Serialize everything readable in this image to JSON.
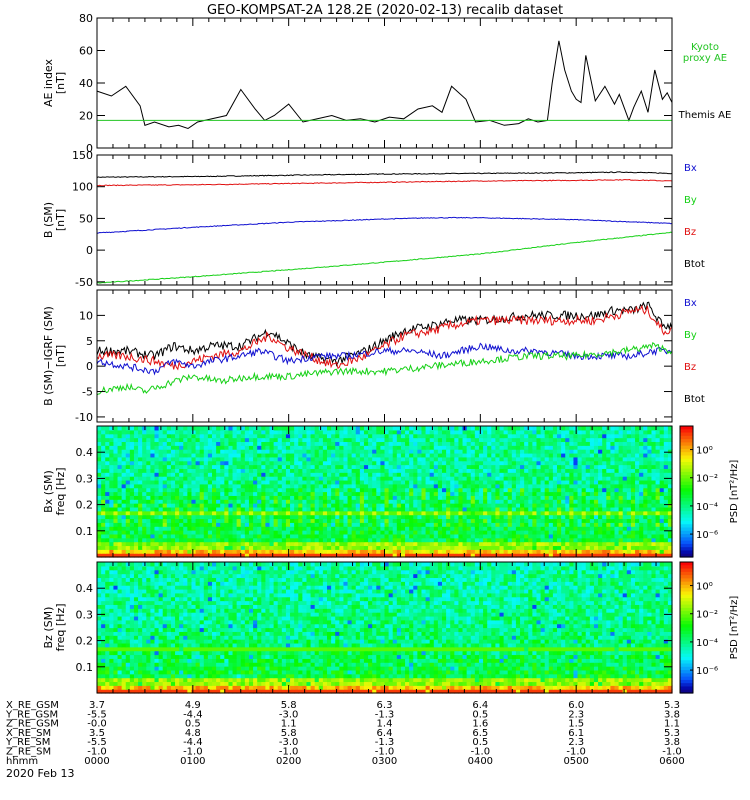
{
  "title": "GEO-KOMPSAT-2A 128.2E (2020-02-13) recalib dataset",
  "date_label": "2020 Feb 13",
  "colors": {
    "bx": "#1010d0",
    "by": "#16d016",
    "bz": "#e01010",
    "btot": "#000000",
    "kyoto": "#22c422"
  },
  "chart_data": [
    {
      "id": "ae",
      "type": "line",
      "ylabel_lines": [
        "AE index",
        "[nT]"
      ],
      "ylim": [
        0,
        80
      ],
      "yticks": [
        0,
        20,
        40,
        60,
        80
      ],
      "xlim": [
        0,
        6
      ],
      "legend": [
        {
          "label": "Kyoto",
          "color": "#22c422"
        },
        {
          "label": "proxy AE",
          "color": "#22c422"
        },
        {
          "label": "Themis AE",
          "color": "#000000"
        }
      ],
      "series": [
        {
          "name": "Themis AE",
          "color": "#000000",
          "x": [
            0,
            0.15,
            0.3,
            0.45,
            0.5,
            0.6,
            0.75,
            0.85,
            0.95,
            1.05,
            1.2,
            1.35,
            1.5,
            1.65,
            1.75,
            1.85,
            2.0,
            2.15,
            2.3,
            2.45,
            2.6,
            2.75,
            2.9,
            3.05,
            3.2,
            3.35,
            3.5,
            3.6,
            3.7,
            3.85,
            3.95,
            4.1,
            4.25,
            4.4,
            4.5,
            4.6,
            4.7,
            4.75,
            4.82,
            4.88,
            4.95,
            5.0,
            5.05,
            5.1,
            5.2,
            5.3,
            5.4,
            5.45,
            5.55,
            5.6,
            5.68,
            5.75,
            5.82,
            5.9,
            5.95,
            6.0
          ],
          "values": [
            35,
            32,
            38,
            26,
            14,
            16,
            13,
            14,
            12,
            16,
            18,
            20,
            36,
            24,
            17,
            20,
            27,
            16,
            18,
            20,
            17,
            18,
            16,
            19,
            18,
            24,
            26,
            22,
            38,
            30,
            16,
            17,
            14,
            15,
            18,
            16,
            17,
            40,
            66,
            48,
            35,
            30,
            28,
            57,
            29,
            38,
            27,
            33,
            17,
            25,
            35,
            22,
            48,
            30,
            34,
            28
          ]
        },
        {
          "name": "Kyoto proxy AE",
          "color": "#22c422",
          "x": [
            0,
            6
          ],
          "values": [
            17,
            17
          ]
        }
      ]
    },
    {
      "id": "b_sm",
      "type": "line",
      "ylabel_lines": [
        "B (SM)",
        "[nT]"
      ],
      "ylim": [
        -55,
        150
      ],
      "yticks": [
        -50,
        0,
        50,
        100,
        150
      ],
      "xlim": [
        0,
        6
      ],
      "legend": [
        {
          "label": "Bx",
          "color": "#1010d0"
        },
        {
          "label": "By",
          "color": "#16d016"
        },
        {
          "label": "Bz",
          "color": "#e01010"
        },
        {
          "label": "Btot",
          "color": "#000000"
        }
      ],
      "series": [
        {
          "name": "Btot",
          "color": "#000000",
          "x": [
            0,
            1,
            2,
            3,
            4,
            5,
            5.5,
            6
          ],
          "values": [
            115,
            116,
            118,
            120,
            121,
            122,
            123,
            121
          ]
        },
        {
          "name": "Bz",
          "color": "#e01010",
          "x": [
            0,
            1,
            2,
            3,
            4,
            5,
            5.5,
            6
          ],
          "values": [
            102,
            103,
            105,
            107,
            109,
            110,
            111,
            109
          ]
        },
        {
          "name": "Bx",
          "color": "#1010d0",
          "x": [
            0,
            1,
            2,
            3,
            3.5,
            4,
            5,
            5.5,
            6
          ],
          "values": [
            27,
            36,
            44,
            49,
            51,
            51,
            48,
            45,
            42
          ]
        },
        {
          "name": "By",
          "color": "#16d016",
          "x": [
            0,
            1,
            2,
            3,
            4,
            5,
            6
          ],
          "values": [
            -52,
            -42,
            -31,
            -19,
            -6,
            12,
            28
          ]
        }
      ]
    },
    {
      "id": "db_sm",
      "type": "line",
      "ylabel_lines": [
        "B (SM)−IGRF (SM)",
        "[nT]"
      ],
      "ylim": [
        -11,
        15
      ],
      "yticks": [
        -10,
        -5,
        0,
        5,
        10
      ],
      "xlim": [
        0,
        6
      ],
      "legend": [
        {
          "label": "Bx",
          "color": "#1010d0"
        },
        {
          "label": "By",
          "color": "#16d016"
        },
        {
          "label": "Bz",
          "color": "#e01010"
        },
        {
          "label": "Btot",
          "color": "#000000"
        }
      ],
      "series": [
        {
          "name": "Btot",
          "color": "#000000",
          "x": [
            0,
            0.3,
            0.6,
            0.8,
            1.0,
            1.2,
            1.5,
            1.8,
            1.95,
            2.2,
            2.5,
            2.8,
            3.0,
            3.2,
            3.5,
            3.7,
            4.0,
            4.5,
            4.8,
            5.0,
            5.2,
            5.4,
            5.6,
            5.75,
            5.9,
            6.0
          ],
          "values": [
            3,
            3,
            2,
            4,
            3,
            4,
            4,
            7,
            5,
            2,
            1,
            3,
            5,
            7,
            8,
            9,
            9,
            10,
            10,
            10,
            10,
            11,
            11,
            12,
            8,
            8
          ]
        },
        {
          "name": "Bz",
          "color": "#e01010",
          "x": [
            0,
            0.3,
            0.6,
            0.8,
            1.0,
            1.2,
            1.5,
            1.8,
            1.95,
            2.2,
            2.5,
            2.8,
            3.0,
            3.2,
            3.5,
            3.7,
            4.0,
            4.5,
            4.8,
            5.0,
            5.2,
            5.4,
            5.6,
            5.75,
            5.9,
            6.0
          ],
          "values": [
            2,
            2,
            1,
            0,
            1,
            2,
            3,
            6,
            4,
            2,
            0,
            2,
            4,
            6,
            7,
            8,
            9,
            9,
            9,
            9,
            9,
            10,
            11,
            11,
            7,
            7
          ]
        },
        {
          "name": "Bx",
          "color": "#1010d0",
          "x": [
            0,
            0.3,
            0.6,
            0.8,
            1.0,
            1.2,
            1.5,
            1.7,
            2.0,
            2.3,
            2.6,
            3.0,
            3.3,
            3.6,
            3.8,
            4.0,
            4.3,
            4.6,
            5.0,
            5.3,
            5.6,
            5.8,
            6.0
          ],
          "values": [
            1,
            0,
            -1,
            1,
            0,
            1,
            2,
            3,
            1,
            2,
            2,
            3,
            3,
            2,
            3,
            4,
            3,
            3,
            2,
            2,
            2,
            3,
            3
          ]
        },
        {
          "name": "By",
          "color": "#16d016",
          "x": [
            0,
            0.3,
            0.5,
            0.8,
            1.0,
            1.3,
            1.6,
            2.0,
            2.5,
            3.0,
            3.5,
            4.0,
            4.5,
            5.0,
            5.5,
            5.8,
            6.0
          ],
          "values": [
            -5,
            -4,
            -5,
            -3,
            -2,
            -3,
            -2,
            -2,
            -1,
            -1,
            0,
            1,
            2,
            2,
            3,
            4,
            3
          ]
        }
      ]
    },
    {
      "id": "spec_bx",
      "type": "heatmap",
      "ylabel_lines": [
        "Bx (SM)",
        "freq [Hz]"
      ],
      "ylim": [
        0,
        0.5
      ],
      "yticks": [
        0.1,
        0.2,
        0.3,
        0.4
      ],
      "xlim": [
        0,
        6
      ],
      "colorbar": {
        "label": "PSD [nT²/Hz]",
        "ticks": [
          "10⁰",
          "10⁻²",
          "10⁻⁴",
          "10⁻⁶"
        ]
      }
    },
    {
      "id": "spec_bz",
      "type": "heatmap",
      "ylabel_lines": [
        "Bz (SM)",
        "freq [Hz]"
      ],
      "ylim": [
        0,
        0.5
      ],
      "yticks": [
        0.1,
        0.2,
        0.3,
        0.4
      ],
      "xlim": [
        0,
        6
      ],
      "colorbar": {
        "label": "PSD [nT²/Hz]",
        "ticks": [
          "10⁰",
          "10⁻²",
          "10⁻⁴",
          "10⁻⁶"
        ]
      }
    }
  ],
  "ephemeris": {
    "labels": [
      "X_RE_GSM",
      "Y_RE_GSM",
      "Z_RE_GSM",
      "X_RE_SM",
      "Y_RE_SM",
      "Z_RE_SM",
      "hhmm"
    ],
    "columns": [
      [
        "3.7",
        "-5.5",
        "-0.0",
        "3.5",
        "-5.5",
        "-1.0",
        "0000"
      ],
      [
        "4.9",
        "-4.4",
        "0.5",
        "4.8",
        "-4.4",
        "-1.0",
        "0100"
      ],
      [
        "5.8",
        "-3.0",
        "1.1",
        "5.8",
        "-3.0",
        "-1.0",
        "0200"
      ],
      [
        "6.3",
        "-1.3",
        "1.4",
        "6.4",
        "-1.3",
        "-1.0",
        "0300"
      ],
      [
        "6.4",
        "0.5",
        "1.6",
        "6.5",
        "0.5",
        "-1.0",
        "0400"
      ],
      [
        "6.0",
        "2.3",
        "1.5",
        "6.1",
        "2.3",
        "-1.0",
        "0500"
      ],
      [
        "5.3",
        "3.8",
        "1.1",
        "5.3",
        "3.8",
        "-1.0",
        "0600"
      ]
    ]
  }
}
